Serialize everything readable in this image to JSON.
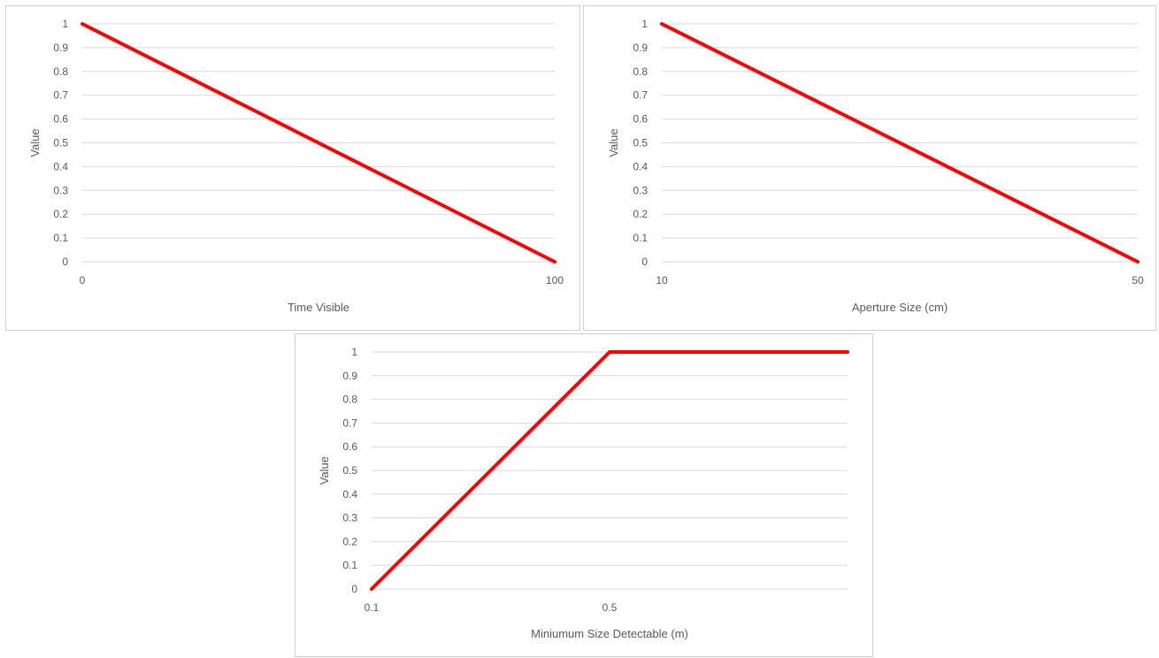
{
  "chart_data": [
    {
      "type": "line",
      "xlabel": "Time Visible",
      "ylabel": "Value",
      "x_ticks": [
        "0",
        "100"
      ],
      "y_ticks": [
        "0",
        "0.1",
        "0.2",
        "0.3",
        "0.4",
        "0.5",
        "0.6",
        "0.7",
        "0.8",
        "0.9",
        "1"
      ],
      "xlim": [
        0,
        100
      ],
      "ylim": [
        0,
        1
      ],
      "grid": true,
      "series": [
        {
          "color": "#ff0000",
          "x": [
            0,
            100
          ],
          "y": [
            1,
            0
          ]
        }
      ]
    },
    {
      "type": "line",
      "xlabel": "Aperture Size (cm)",
      "ylabel": "Value",
      "x_ticks": [
        "10",
        "50"
      ],
      "y_ticks": [
        "0",
        "0.1",
        "0.2",
        "0.3",
        "0.4",
        "0.5",
        "0.6",
        "0.7",
        "0.8",
        "0.9",
        "1"
      ],
      "xlim": [
        10,
        50
      ],
      "ylim": [
        0,
        1
      ],
      "grid": true,
      "series": [
        {
          "color": "#ff0000",
          "x": [
            10,
            50
          ],
          "y": [
            1,
            0
          ]
        }
      ]
    },
    {
      "type": "line",
      "xlabel": "Miniumum Size Detectable (m)",
      "ylabel": "Value",
      "x_ticks": [
        "0.1",
        "0.5"
      ],
      "y_ticks": [
        "0",
        "0.1",
        "0.2",
        "0.3",
        "0.4",
        "0.5",
        "0.6",
        "0.7",
        "0.8",
        "0.9",
        "1"
      ],
      "xlim": [
        0.1,
        0.9
      ],
      "ylim": [
        0,
        1
      ],
      "grid": true,
      "series": [
        {
          "color": "#ff0000",
          "x": [
            0.1,
            0.5,
            0.9
          ],
          "y": [
            0,
            1,
            1
          ]
        }
      ]
    }
  ]
}
